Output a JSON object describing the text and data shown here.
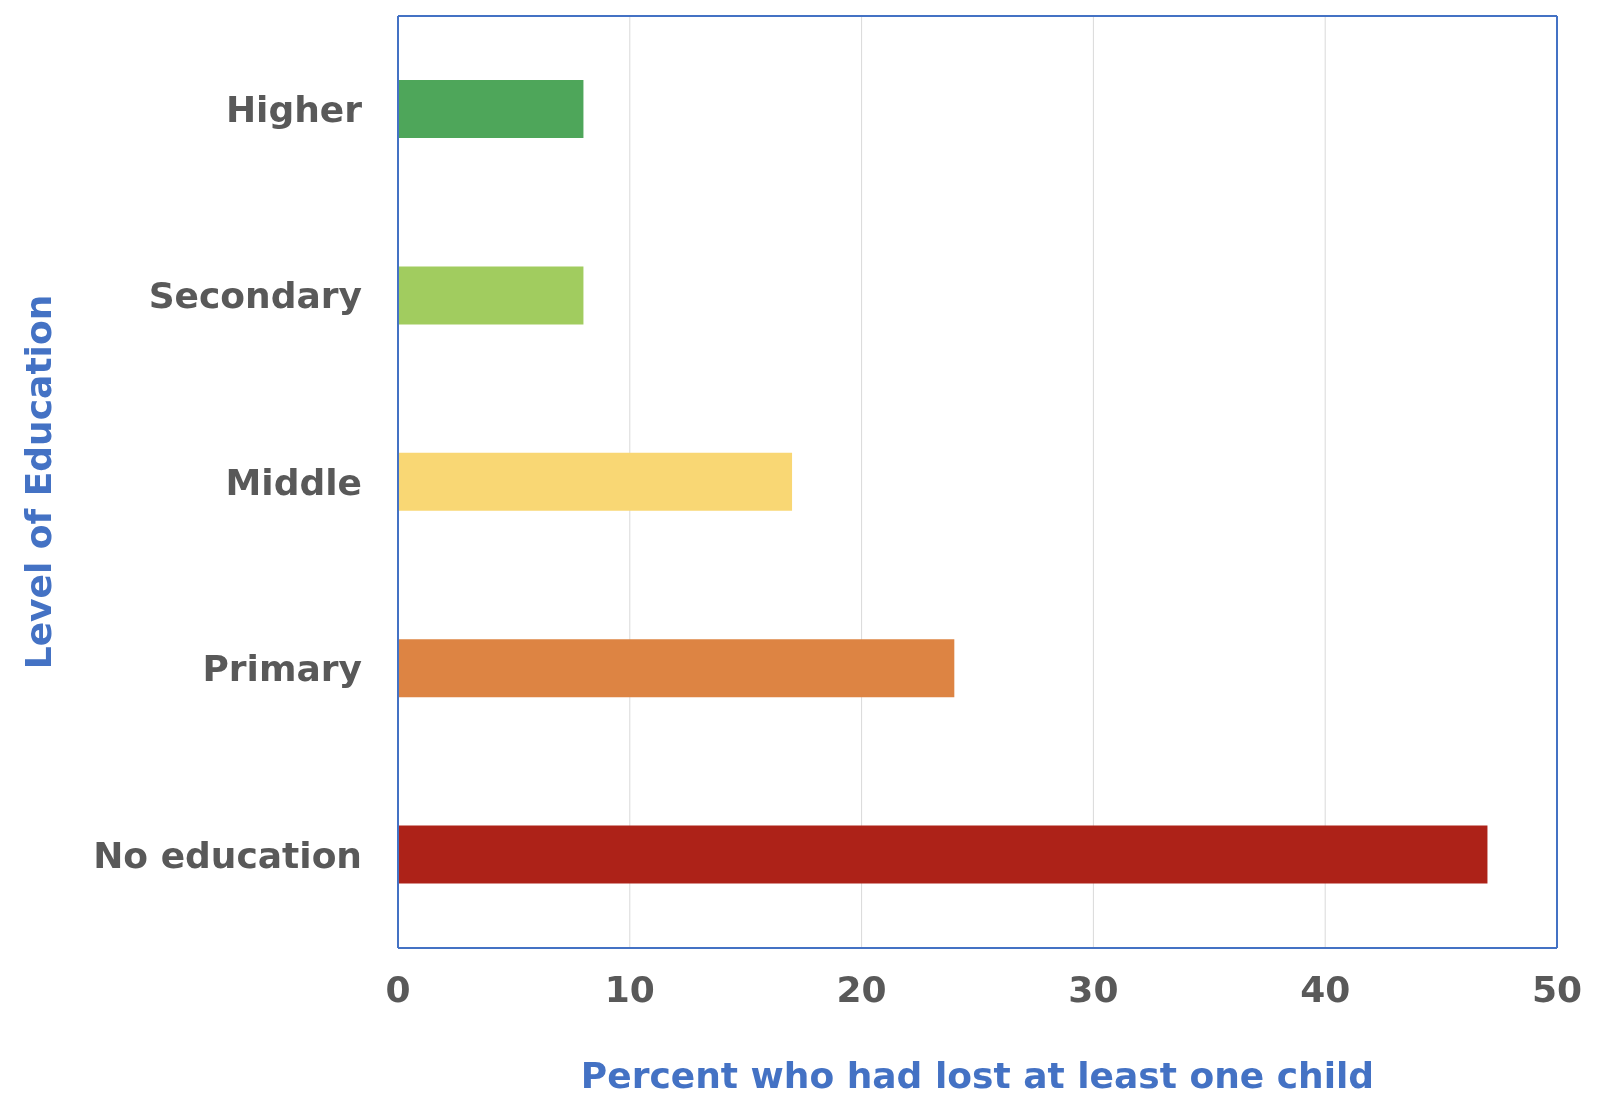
{
  "chart_data": {
    "type": "bar",
    "orientation": "horizontal",
    "xlabel": "Percent who had lost at least one child",
    "ylabel": "Level of Education",
    "categories": [
      "Higher",
      "Secondary",
      "Middle",
      "Primary",
      "No education"
    ],
    "values": [
      8,
      8,
      17,
      24,
      47
    ],
    "colors": [
      "#4ea65a",
      "#a1cc5f",
      "#f9d774",
      "#dd8443",
      "#ad2218"
    ],
    "xlim": [
      0,
      50
    ],
    "xticks": [
      0,
      10,
      20,
      30,
      40,
      50
    ],
    "grid": "x",
    "legend": false
  }
}
